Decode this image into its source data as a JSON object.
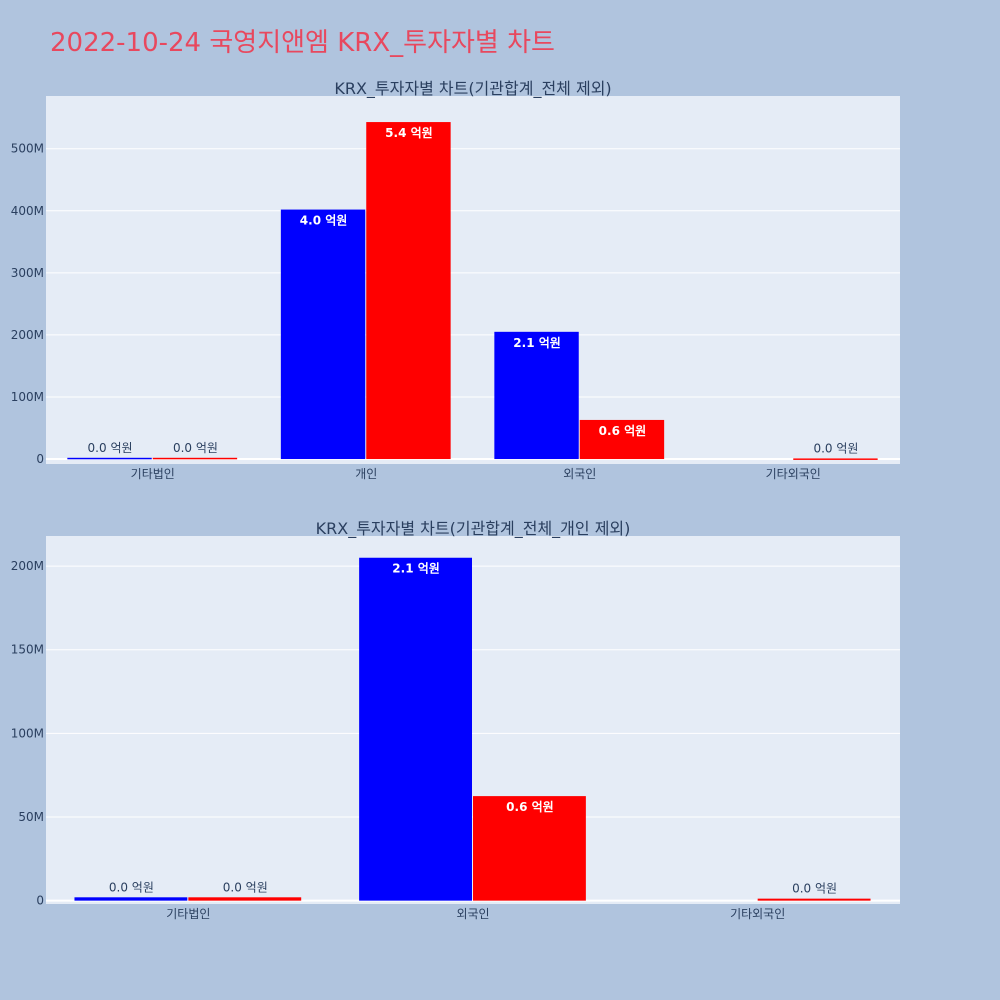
{
  "title": "2022-10-24 국영지앤엠 KRX_투자자별 차트",
  "colors": {
    "buy": "#0000ff",
    "sell": "#ff0000",
    "plot_bg": "#e5ecf6",
    "page_bg": "#b0c4de",
    "title": "#e8485e"
  },
  "chart_data": [
    {
      "type": "bar",
      "title": "KRX_투자자별 차트(기관합계_전체 제외)",
      "categories": [
        "기타법인",
        "개인",
        "외국인",
        "기타외국인"
      ],
      "series": [
        {
          "values": [
            2000000,
            402000000,
            205000000,
            null
          ],
          "labels": [
            "0.0 억원",
            "4.0 억원",
            "2.1 억원",
            ""
          ]
        },
        {
          "values": [
            2000000,
            543000000,
            63000000,
            1000000
          ],
          "labels": [
            "0.0 억원",
            "5.4 억원",
            "0.6 억원",
            "0.0 억원"
          ]
        }
      ],
      "ylim": [
        -8000000,
        585000000
      ],
      "yticks": [
        0,
        100000000,
        200000000,
        300000000,
        400000000,
        500000000
      ],
      "ytick_labels": [
        "0",
        "100M",
        "200M",
        "300M",
        "400M",
        "500M"
      ],
      "grid": true
    },
    {
      "type": "bar",
      "title": "KRX_투자자별 차트(기관합계_전체_개인 제외)",
      "categories": [
        "기타법인",
        "외국인",
        "기타외국인"
      ],
      "series": [
        {
          "values": [
            2000000,
            205000000,
            null
          ],
          "labels": [
            "0.0 억원",
            "2.1 억원",
            ""
          ]
        },
        {
          "values": [
            2000000,
            62500000,
            1200000
          ],
          "labels": [
            "0.0 억원",
            "0.6 억원",
            "0.0 억원"
          ]
        }
      ],
      "ylim": [
        -2000000,
        218000000
      ],
      "yticks": [
        0,
        50000000,
        100000000,
        150000000,
        200000000
      ],
      "ytick_labels": [
        "0",
        "50M",
        "100M",
        "150M",
        "200M"
      ],
      "grid": true
    }
  ]
}
